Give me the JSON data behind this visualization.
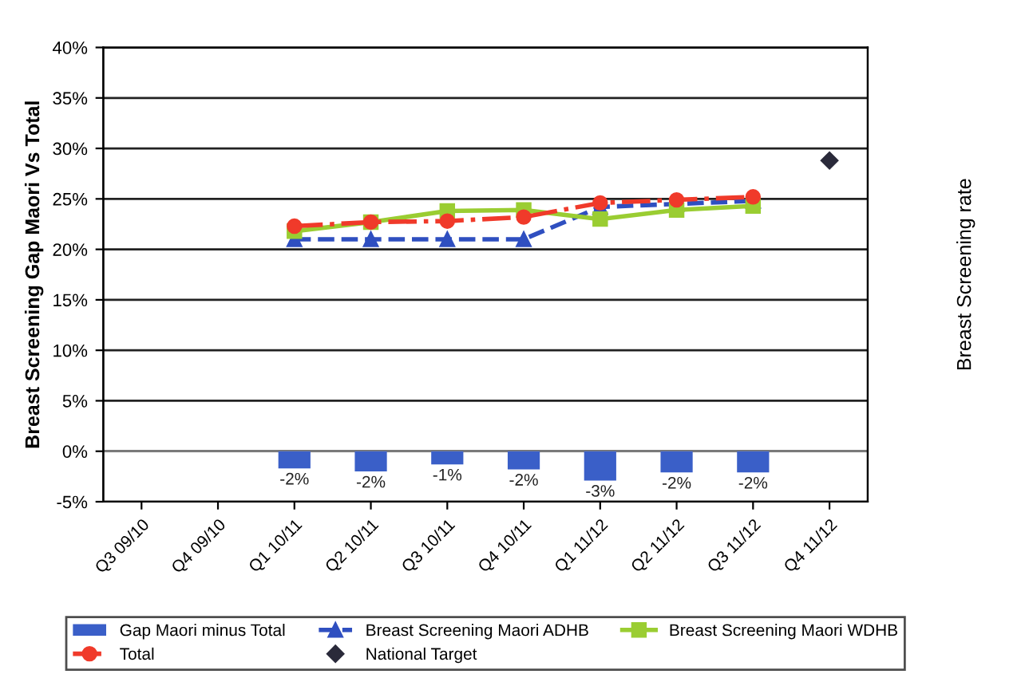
{
  "chart_data": {
    "type": "bar",
    "ylabel": "Breast Screening Gap Maori Vs Total",
    "y2label": "Breast Screening rate",
    "categories": [
      "Q3 09/10",
      "Q4 09/10",
      "Q1 10/11",
      "Q2 10/11",
      "Q3 10/11",
      "Q4 10/11",
      "Q1 11/12",
      "Q2 11/12",
      "Q3 11/12",
      "Q4 11/12"
    ],
    "series": [
      {
        "name": "Gap Maori minus Total",
        "color": "#3a5fc8",
        "values": [
          null,
          null,
          -1.7,
          -2.0,
          -1.3,
          -1.8,
          -2.9,
          -2.1,
          -2.1,
          null
        ],
        "value_labels": [
          null,
          null,
          "-2%",
          "-2%",
          "-1%",
          "-2%",
          "-3%",
          "-2%",
          "-2%",
          null
        ]
      },
      {
        "name": "Breast Screening Maori ADHB",
        "type": "line",
        "color": "#2f4fc0",
        "marker": "triangle",
        "line_style": "dashed",
        "values": [
          null,
          null,
          21.0,
          21.0,
          21.0,
          21.0,
          24.2,
          24.5,
          24.8,
          null
        ]
      },
      {
        "name": "Breast Screening Maori WDHB",
        "type": "line",
        "color": "#9acd32",
        "marker": "square",
        "line_style": "solid",
        "values": [
          null,
          null,
          21.8,
          22.7,
          23.8,
          23.9,
          23.0,
          23.9,
          24.3,
          null
        ]
      },
      {
        "name": "Total",
        "type": "line",
        "color": "#f03a2a",
        "marker": "circle",
        "line_style": "dashdot",
        "values": [
          null,
          null,
          22.3,
          22.7,
          22.8,
          23.2,
          24.6,
          24.9,
          25.2,
          null
        ]
      },
      {
        "name": "National Target",
        "type": "scatter",
        "color": "#2a2a3a",
        "marker": "diamond",
        "values": [
          null,
          null,
          null,
          null,
          null,
          null,
          null,
          null,
          null,
          28.8
        ]
      }
    ],
    "ylim": [
      -5,
      40
    ],
    "yticks": [
      {
        "value": -5,
        "label": "-5%"
      },
      {
        "value": 0,
        "label": "0%"
      },
      {
        "value": 5,
        "label": "5%"
      },
      {
        "value": 10,
        "label": "10%"
      },
      {
        "value": 15,
        "label": "15%"
      },
      {
        "value": 20,
        "label": "20%"
      },
      {
        "value": 25,
        "label": "25%"
      },
      {
        "value": 30,
        "label": "30%"
      },
      {
        "value": 35,
        "label": "35%"
      },
      {
        "value": 40,
        "label": "40%"
      }
    ],
    "grid": "y",
    "legend": "bottom"
  }
}
